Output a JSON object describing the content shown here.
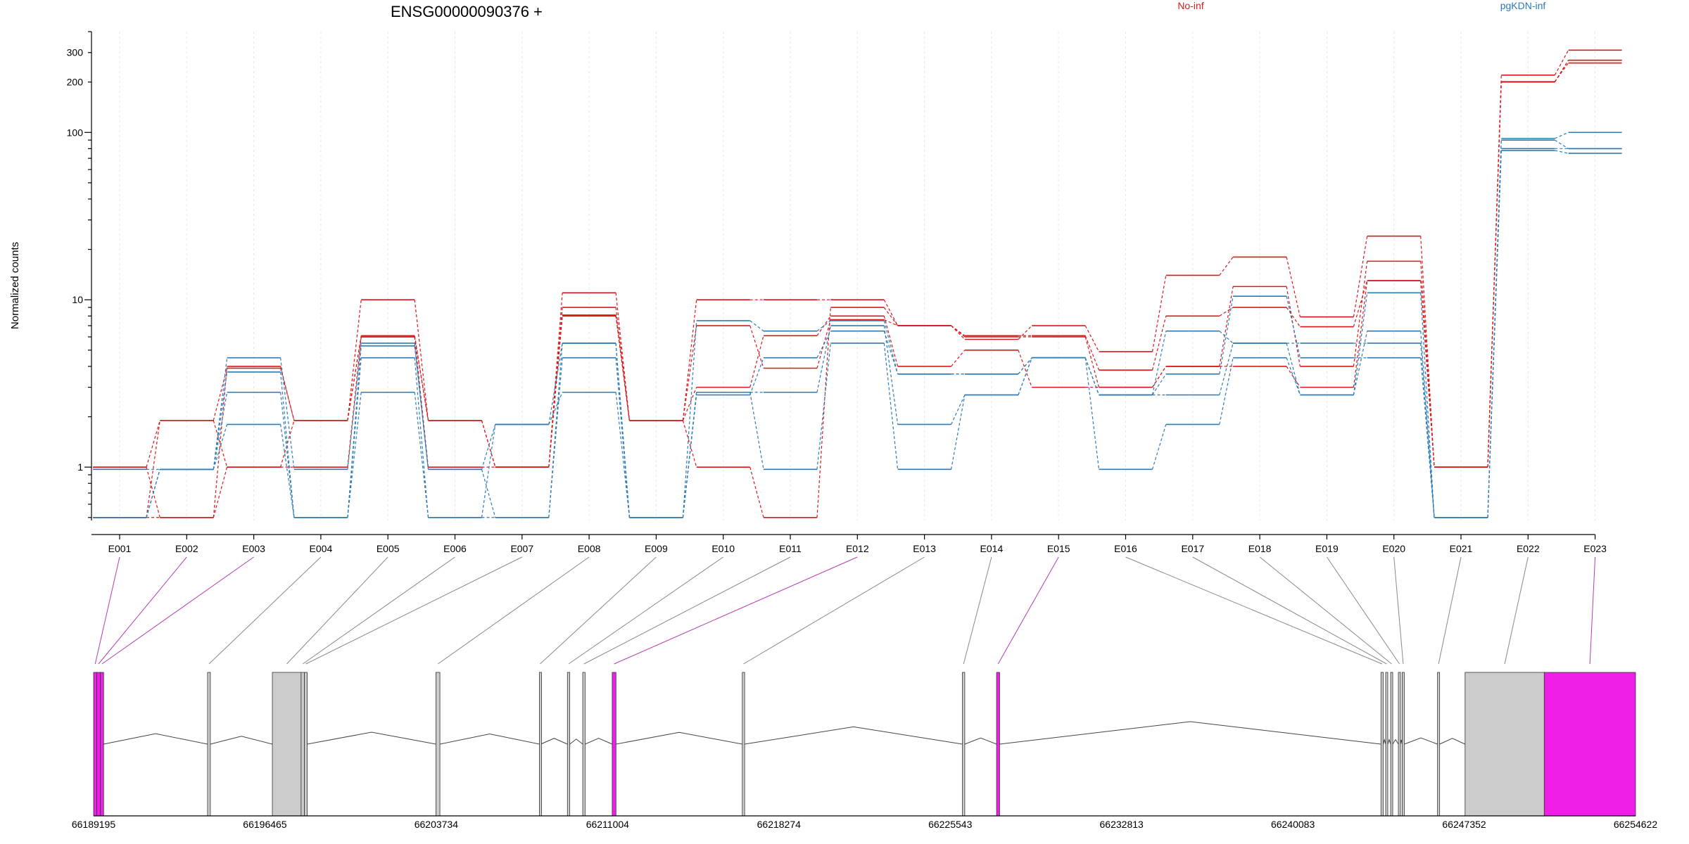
{
  "chart_data": {
    "type": "line",
    "title": "ENSG00000090376 +",
    "ylabel": "Normalized counts",
    "yscale": "log",
    "ylim": [
      0.48,
      400
    ],
    "yticks": [
      1,
      10,
      100,
      200,
      300
    ],
    "grid": "vertical dashed at exons",
    "legend_placement": "top-right",
    "categories": [
      "E001",
      "E002",
      "E003",
      "E004",
      "E005",
      "E006",
      "E007",
      "E008",
      "E009",
      "E010",
      "E011",
      "E012",
      "E013",
      "E014",
      "E015",
      "E016",
      "E017",
      "E018",
      "E019",
      "E020",
      "E021",
      "E022",
      "E023"
    ],
    "series": [
      {
        "group": "No-inf",
        "color": "#d7191c",
        "values": [
          1.0,
          1.9,
          1.0,
          1.9,
          6.1,
          1.9,
          1.0,
          8.1,
          1.9,
          7.0,
          3.9,
          7.6,
          7.0,
          6.1,
          6.1,
          3.8,
          8.0,
          9.0,
          6.9,
          13,
          1.0,
          200,
          270
        ]
      },
      {
        "group": "No-inf",
        "color": "#d7191c",
        "values": [
          0.5,
          1.9,
          3.9,
          1.9,
          10,
          1.9,
          1.0,
          11,
          1.9,
          10,
          10,
          10,
          7.0,
          5.8,
          7.0,
          4.9,
          14,
          18,
          7.9,
          24,
          1.0,
          220,
          310
        ]
      },
      {
        "group": "No-inf",
        "color": "#d7191c",
        "values": [
          0.5,
          0.5,
          4.0,
          1.9,
          6.0,
          1.9,
          1.0,
          9.0,
          1.9,
          3.0,
          6.1,
          8.0,
          4.0,
          5.0,
          3.0,
          3.0,
          4.0,
          12,
          4.0,
          17,
          1.0,
          201,
          260
        ]
      },
      {
        "group": "No-inf",
        "color": "#d7191c",
        "values": [
          1.0,
          0.5,
          1.0,
          1.0,
          6.0,
          1.0,
          1.0,
          8.0,
          1.9,
          1.0,
          0.5,
          9.0,
          7.0,
          6.0,
          6.0,
          3.0,
          4.0,
          4.0,
          3.0,
          13,
          1.0,
          200,
          270
        ]
      },
      {
        "group": "pgKDN-inf",
        "color": "#2c7bb6",
        "values": [
          0.97,
          0.97,
          4.5,
          0.97,
          5.5,
          0.97,
          1.8,
          5.5,
          0.5,
          7.5,
          6.5,
          7.5,
          3.6,
          3.6,
          4.5,
          2.7,
          6.5,
          5.5,
          5.5,
          5.5,
          0.5,
          92,
          100
        ]
      },
      {
        "group": "pgKDN-inf",
        "color": "#2c7bb6",
        "values": [
          0.5,
          0.97,
          3.7,
          0.5,
          4.5,
          0.5,
          0.5,
          4.5,
          0.5,
          2.8,
          0.97,
          5.5,
          0.97,
          2.7,
          4.5,
          0.97,
          1.8,
          4.5,
          2.7,
          11,
          0.5,
          78,
          75
        ]
      },
      {
        "group": "pgKDN-inf",
        "color": "#2c7bb6",
        "values": [
          0.5,
          0.97,
          1.8,
          0.5,
          2.8,
          0.5,
          1.8,
          2.8,
          0.5,
          2.8,
          2.8,
          7.0,
          1.8,
          2.7,
          4.5,
          2.7,
          2.7,
          5.5,
          2.7,
          6.5,
          0.5,
          80,
          80
        ]
      },
      {
        "group": "pgKDN-inf",
        "color": "#2c7bb6",
        "values": [
          0.5,
          0.97,
          2.8,
          0.5,
          5.3,
          0.97,
          0.5,
          5.5,
          0.5,
          2.7,
          4.5,
          6.5,
          3.6,
          3.6,
          4.5,
          2.7,
          3.6,
          10.5,
          4.5,
          4.5,
          0.5,
          90,
          80
        ]
      }
    ],
    "legend": [
      {
        "label": "No-inf",
        "color": "#d7191c"
      },
      {
        "label": "pgKDN-inf",
        "color": "#2c7bb6"
      }
    ],
    "gene_model": {
      "axis_labels": [
        "66189195",
        "66196465",
        "66203734",
        "66211004",
        "66218274",
        "66225543",
        "66232813",
        "66240083",
        "66247352",
        "66254622"
      ],
      "coord_range": [
        66189195,
        66254622
      ],
      "highlight_color": "#f01fe8",
      "feature_color": "#cccccc",
      "features": [
        {
          "exon": "E001",
          "start": 66189195,
          "end": 66189330,
          "kind": "highlight"
        },
        {
          "exon": "E002",
          "start": 66189330,
          "end": 66189480,
          "kind": "highlight"
        },
        {
          "exon": "E003",
          "start": 66189480,
          "end": 66189620,
          "kind": "highlight"
        },
        {
          "exon": "E004",
          "start": 66194030,
          "end": 66194150,
          "kind": "normal"
        },
        {
          "exon": "E005",
          "start": 66196780,
          "end": 66198000,
          "kind": "normal"
        },
        {
          "exon": "E006",
          "start": 66198000,
          "end": 66198140,
          "kind": "normal"
        },
        {
          "exon": "E007",
          "start": 66198140,
          "end": 66198260,
          "kind": "normal"
        },
        {
          "exon": "E008",
          "start": 66203720,
          "end": 66203890,
          "kind": "normal"
        },
        {
          "exon": "E009",
          "start": 66208110,
          "end": 66208170,
          "kind": "normal"
        },
        {
          "exon": "E010",
          "start": 66209300,
          "end": 66209400,
          "kind": "normal"
        },
        {
          "exon": "E011",
          "start": 66209950,
          "end": 66210050,
          "kind": "normal"
        },
        {
          "exon": "E012",
          "start": 66211200,
          "end": 66211360,
          "kind": "highlight"
        },
        {
          "exon": "E013",
          "start": 66216720,
          "end": 66216820,
          "kind": "normal"
        },
        {
          "exon": "E014",
          "start": 66226060,
          "end": 66226160,
          "kind": "normal"
        },
        {
          "exon": "E015",
          "start": 66227510,
          "end": 66227640,
          "kind": "highlight"
        },
        {
          "exon": "E016",
          "start": 66243820,
          "end": 66243920,
          "kind": "normal"
        },
        {
          "exon": "E017",
          "start": 66244020,
          "end": 66244110,
          "kind": "normal"
        },
        {
          "exon": "E018",
          "start": 66244230,
          "end": 66244320,
          "kind": "normal"
        },
        {
          "exon": "E019",
          "start": 66244560,
          "end": 66244650,
          "kind": "normal"
        },
        {
          "exon": "E020",
          "start": 66244720,
          "end": 66244810,
          "kind": "normal"
        },
        {
          "exon": "E021",
          "start": 66246220,
          "end": 66246310,
          "kind": "normal"
        },
        {
          "exon": "E022",
          "start": 66247390,
          "end": 66250750,
          "kind": "normal"
        },
        {
          "exon": "E023",
          "start": 66250750,
          "end": 66254622,
          "kind": "highlight"
        }
      ],
      "introns": [
        [
          66189620,
          66194030
        ],
        [
          66194150,
          66196780
        ],
        [
          66198260,
          66203720
        ],
        [
          66203890,
          66208110
        ],
        [
          66208170,
          66209300
        ],
        [
          66209400,
          66209950
        ],
        [
          66210050,
          66211200
        ],
        [
          66211360,
          66216720
        ],
        [
          66216820,
          66226060
        ],
        [
          66226160,
          66227510
        ],
        [
          66227640,
          66243820
        ],
        [
          66243920,
          66244020
        ],
        [
          66244110,
          66244230
        ],
        [
          66244320,
          66244560
        ],
        [
          66244650,
          66244720
        ],
        [
          66244810,
          66246220
        ],
        [
          66246310,
          66247390
        ]
      ]
    }
  }
}
